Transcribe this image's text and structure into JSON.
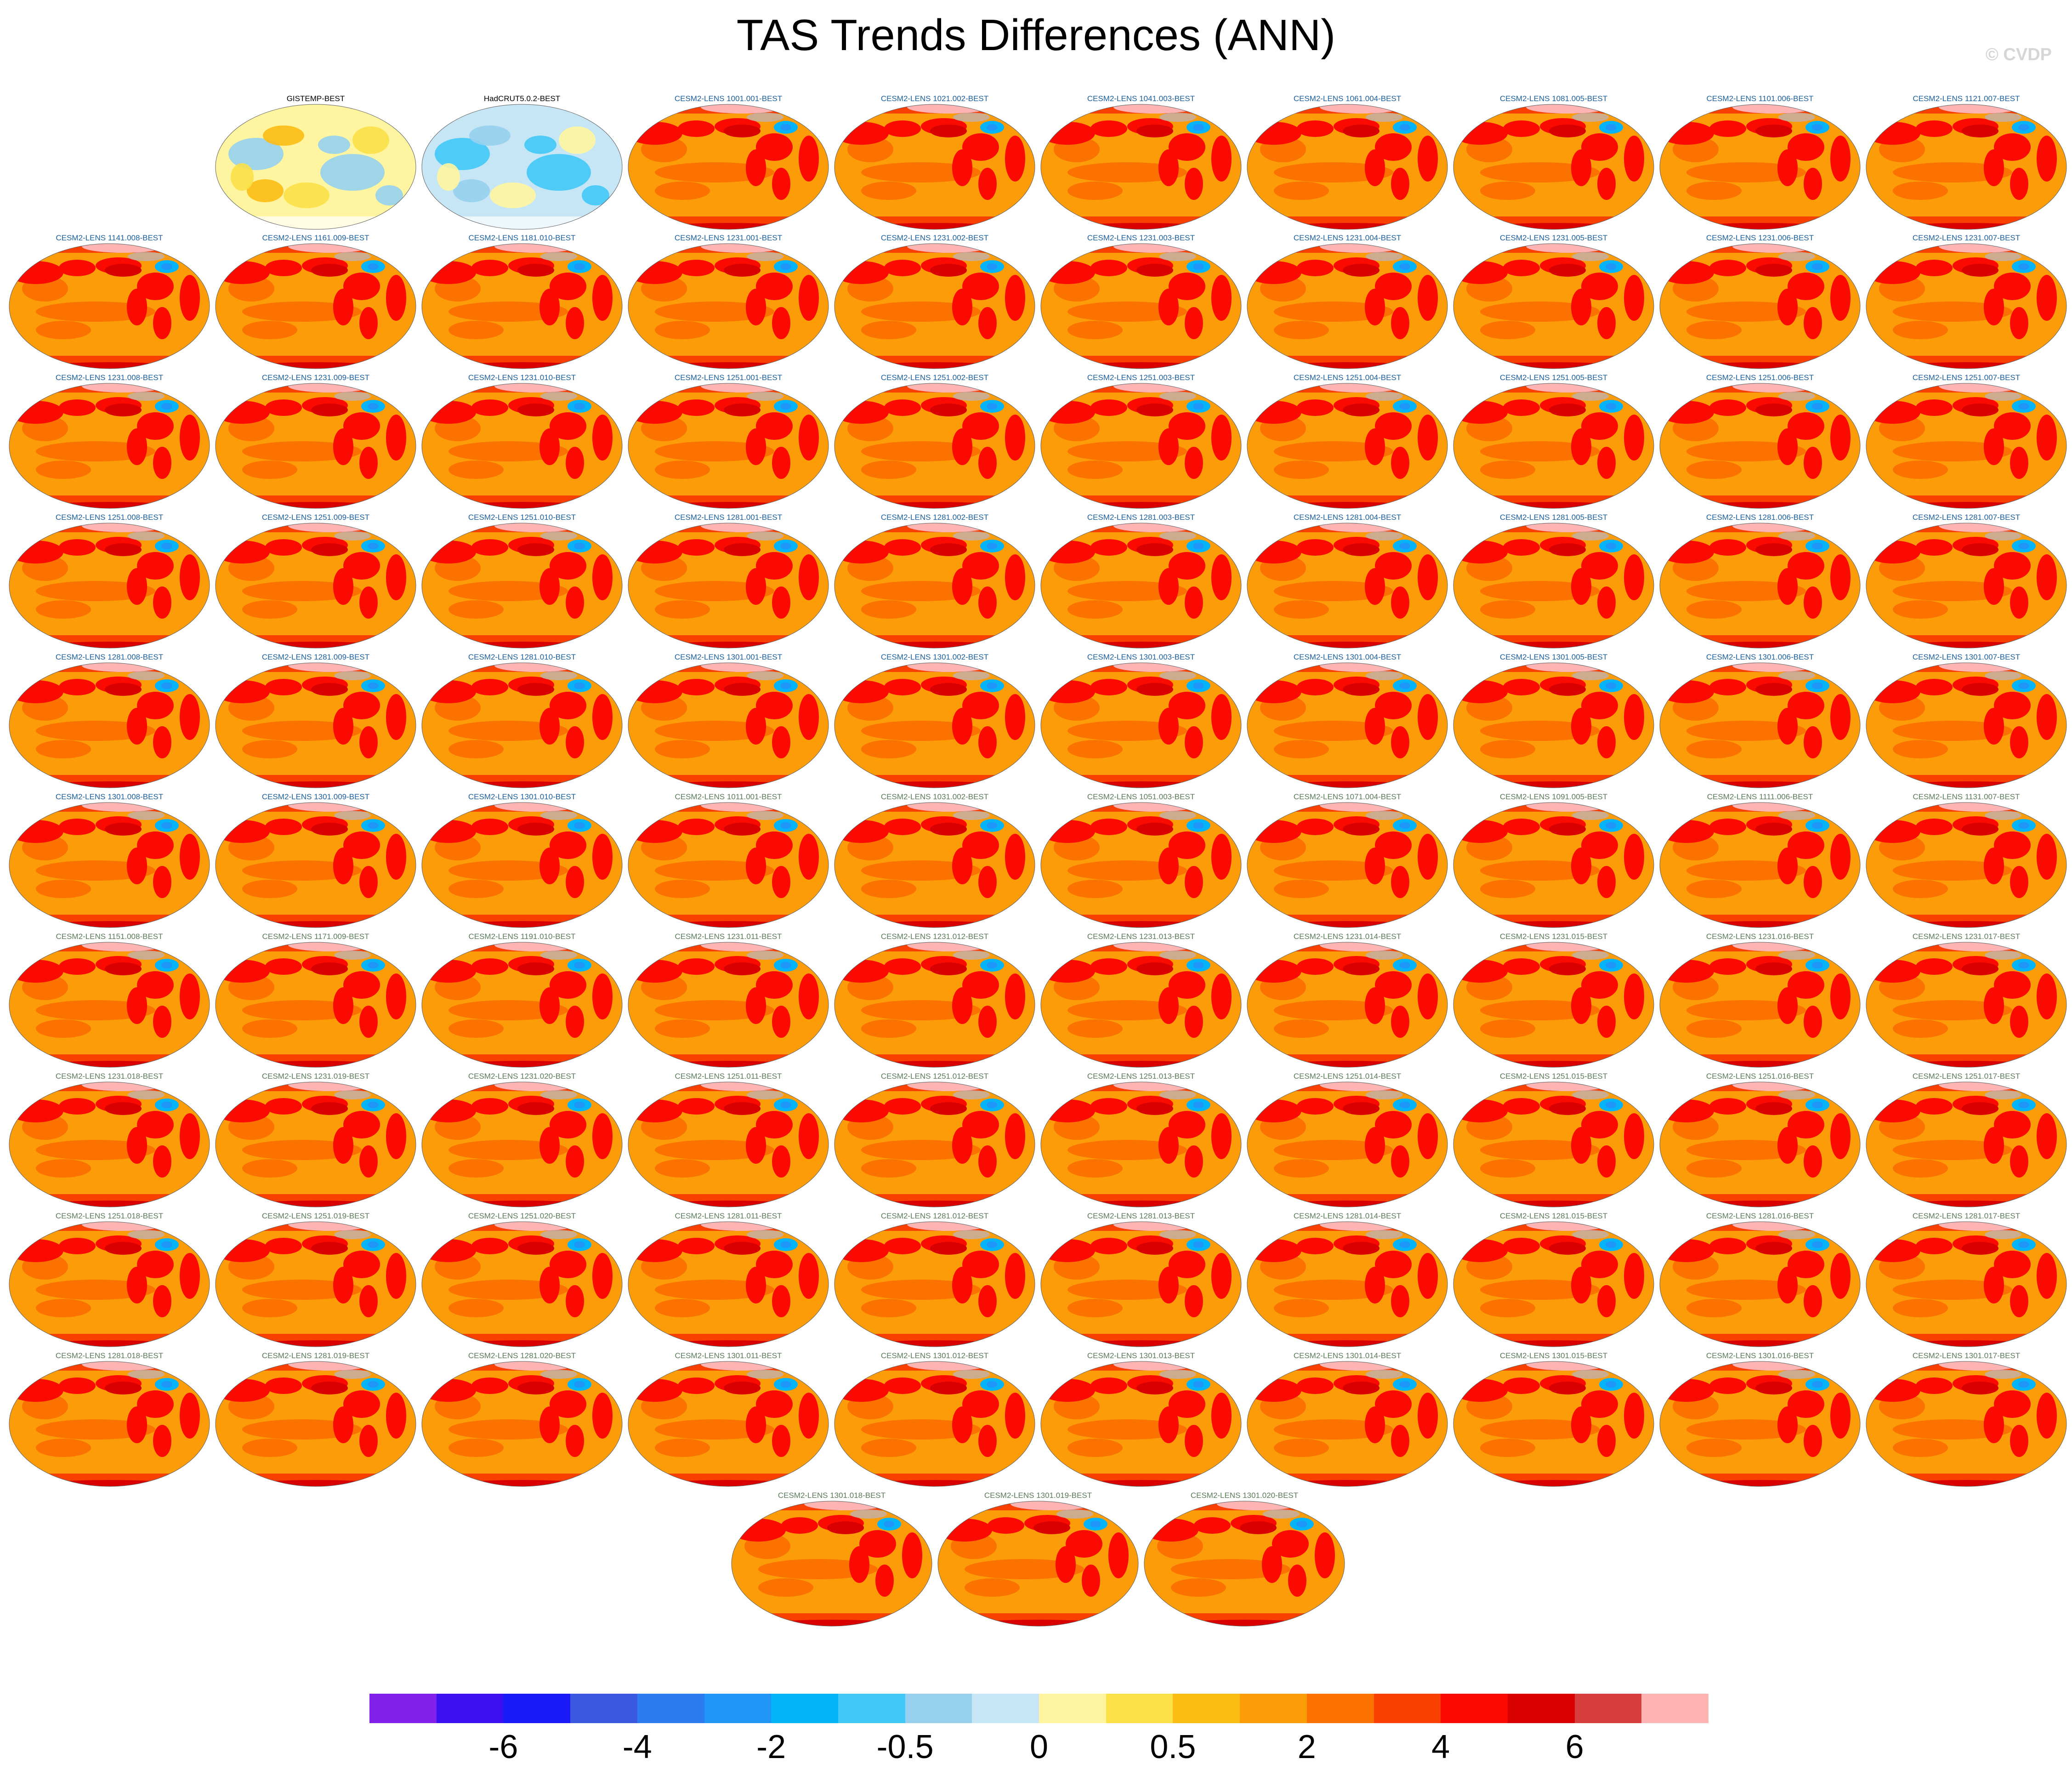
{
  "chart_data": {
    "type": "heatmap",
    "title": "TAS Trends Differences (ANN)",
    "copyright": "© CVDP",
    "colorbar": {
      "levels": [
        "-6",
        "-4",
        "-2",
        "-0.5",
        "0",
        "0.5",
        "2",
        "4",
        "6"
      ],
      "colors": [
        "#8020e8",
        "#3a10f0",
        "#1a1af8",
        "#3a58e0",
        "#2e7af0",
        "#1f96f8",
        "#05b4f8",
        "#40c8f6",
        "#96d0ee",
        "#c6e6f6",
        "#fff5a0",
        "#fbe048",
        "#fbbc14",
        "#fb9c08",
        "#fb7200",
        "#fa4000",
        "#fa0a00",
        "#d80000",
        "#d63e3e",
        "#ffb4b4"
      ]
    },
    "panels": [
      {
        "label": "GISTEMP-BEST",
        "type": "obs1"
      },
      {
        "label": "HadCRUT5.0.2-BEST",
        "type": "obs2"
      },
      {
        "label": "CESM2-LENS 1001.001-BEST",
        "type": "model"
      },
      {
        "label": "CESM2-LENS 1021.002-BEST",
        "type": "model"
      },
      {
        "label": "CESM2-LENS 1041.003-BEST",
        "type": "model"
      },
      {
        "label": "CESM2-LENS 1061.004-BEST",
        "type": "model"
      },
      {
        "label": "CESM2-LENS 1081.005-BEST",
        "type": "model"
      },
      {
        "label": "CESM2-LENS 1101.006-BEST",
        "type": "model"
      },
      {
        "label": "CESM2-LENS 1121.007-BEST",
        "type": "model"
      },
      {
        "label": "CESM2-LENS 1141.008-BEST",
        "type": "model"
      },
      {
        "label": "CESM2-LENS 1161.009-BEST",
        "type": "model"
      },
      {
        "label": "CESM2-LENS 1181.010-BEST",
        "type": "model"
      },
      {
        "label": "CESM2-LENS 1231.001-BEST",
        "type": "model"
      },
      {
        "label": "CESM2-LENS 1231.002-BEST",
        "type": "model"
      },
      {
        "label": "CESM2-LENS 1231.003-BEST",
        "type": "model"
      },
      {
        "label": "CESM2-LENS 1231.004-BEST",
        "type": "model"
      },
      {
        "label": "CESM2-LENS 1231.005-BEST",
        "type": "model"
      },
      {
        "label": "CESM2-LENS 1231.006-BEST",
        "type": "model"
      },
      {
        "label": "CESM2-LENS 1231.007-BEST",
        "type": "model"
      },
      {
        "label": "CESM2-LENS 1231.008-BEST",
        "type": "model"
      },
      {
        "label": "CESM2-LENS 1231.009-BEST",
        "type": "model"
      },
      {
        "label": "CESM2-LENS 1231.010-BEST",
        "type": "model"
      },
      {
        "label": "CESM2-LENS 1251.001-BEST",
        "type": "model"
      },
      {
        "label": "CESM2-LENS 1251.002-BEST",
        "type": "model"
      },
      {
        "label": "CESM2-LENS 1251.003-BEST",
        "type": "model"
      },
      {
        "label": "CESM2-LENS 1251.004-BEST",
        "type": "model"
      },
      {
        "label": "CESM2-LENS 1251.005-BEST",
        "type": "model"
      },
      {
        "label": "CESM2-LENS 1251.006-BEST",
        "type": "model"
      },
      {
        "label": "CESM2-LENS 1251.007-BEST",
        "type": "model"
      },
      {
        "label": "CESM2-LENS 1251.008-BEST",
        "type": "model"
      },
      {
        "label": "CESM2-LENS 1251.009-BEST",
        "type": "model"
      },
      {
        "label": "CESM2-LENS 1251.010-BEST",
        "type": "model"
      },
      {
        "label": "CESM2-LENS 1281.001-BEST",
        "type": "model"
      },
      {
        "label": "CESM2-LENS 1281.002-BEST",
        "type": "model"
      },
      {
        "label": "CESM2-LENS 1281.003-BEST",
        "type": "model"
      },
      {
        "label": "CESM2-LENS 1281.004-BEST",
        "type": "model"
      },
      {
        "label": "CESM2-LENS 1281.005-BEST",
        "type": "model"
      },
      {
        "label": "CESM2-LENS 1281.006-BEST",
        "type": "model"
      },
      {
        "label": "CESM2-LENS 1281.007-BEST",
        "type": "model"
      },
      {
        "label": "CESM2-LENS 1281.008-BEST",
        "type": "model"
      },
      {
        "label": "CESM2-LENS 1281.009-BEST",
        "type": "model"
      },
      {
        "label": "CESM2-LENS 1281.010-BEST",
        "type": "model"
      },
      {
        "label": "CESM2-LENS 1301.001-BEST",
        "type": "model"
      },
      {
        "label": "CESM2-LENS 1301.002-BEST",
        "type": "model"
      },
      {
        "label": "CESM2-LENS 1301.003-BEST",
        "type": "model"
      },
      {
        "label": "CESM2-LENS 1301.004-BEST",
        "type": "model"
      },
      {
        "label": "CESM2-LENS 1301.005-BEST",
        "type": "model"
      },
      {
        "label": "CESM2-LENS 1301.006-BEST",
        "type": "model"
      },
      {
        "label": "CESM2-LENS 1301.007-BEST",
        "type": "model"
      },
      {
        "label": "CESM2-LENS 1301.008-BEST",
        "type": "model"
      },
      {
        "label": "CESM2-LENS 1301.009-BEST",
        "type": "model"
      },
      {
        "label": "CESM2-LENS 1301.010-BEST",
        "type": "model"
      },
      {
        "label": "CESM2-LENS 1011.001-BEST",
        "type": "model2"
      },
      {
        "label": "CESM2-LENS 1031.002-BEST",
        "type": "model2"
      },
      {
        "label": "CESM2-LENS 1051.003-BEST",
        "type": "model2"
      },
      {
        "label": "CESM2-LENS 1071.004-BEST",
        "type": "model2"
      },
      {
        "label": "CESM2-LENS 1091.005-BEST",
        "type": "model2"
      },
      {
        "label": "CESM2-LENS 1111.006-BEST",
        "type": "model2"
      },
      {
        "label": "CESM2-LENS 1131.007-BEST",
        "type": "model2"
      },
      {
        "label": "CESM2-LENS 1151.008-BEST",
        "type": "model2"
      },
      {
        "label": "CESM2-LENS 1171.009-BEST",
        "type": "model2"
      },
      {
        "label": "CESM2-LENS 1191.010-BEST",
        "type": "model2"
      },
      {
        "label": "CESM2-LENS 1231.011-BEST",
        "type": "model2"
      },
      {
        "label": "CESM2-LENS 1231.012-BEST",
        "type": "model2"
      },
      {
        "label": "CESM2-LENS 1231.013-BEST",
        "type": "model2"
      },
      {
        "label": "CESM2-LENS 1231.014-BEST",
        "type": "model2"
      },
      {
        "label": "CESM2-LENS 1231.015-BEST",
        "type": "model2"
      },
      {
        "label": "CESM2-LENS 1231.016-BEST",
        "type": "model2"
      },
      {
        "label": "CESM2-LENS 1231.017-BEST",
        "type": "model2"
      },
      {
        "label": "CESM2-LENS 1231.018-BEST",
        "type": "model2"
      },
      {
        "label": "CESM2-LENS 1231.019-BEST",
        "type": "model2"
      },
      {
        "label": "CESM2-LENS 1231.020-BEST",
        "type": "model2"
      },
      {
        "label": "CESM2-LENS 1251.011-BEST",
        "type": "model2"
      },
      {
        "label": "CESM2-LENS 1251.012-BEST",
        "type": "model2"
      },
      {
        "label": "CESM2-LENS 1251.013-BEST",
        "type": "model2"
      },
      {
        "label": "CESM2-LENS 1251.014-BEST",
        "type": "model2"
      },
      {
        "label": "CESM2-LENS 1251.015-BEST",
        "type": "model2"
      },
      {
        "label": "CESM2-LENS 1251.016-BEST",
        "type": "model2"
      },
      {
        "label": "CESM2-LENS 1251.017-BEST",
        "type": "model2"
      },
      {
        "label": "CESM2-LENS 1251.018-BEST",
        "type": "model2"
      },
      {
        "label": "CESM2-LENS 1251.019-BEST",
        "type": "model2"
      },
      {
        "label": "CESM2-LENS 1251.020-BEST",
        "type": "model2"
      },
      {
        "label": "CESM2-LENS 1281.011-BEST",
        "type": "model2"
      },
      {
        "label": "CESM2-LENS 1281.012-BEST",
        "type": "model2"
      },
      {
        "label": "CESM2-LENS 1281.013-BEST",
        "type": "model2"
      },
      {
        "label": "CESM2-LENS 1281.014-BEST",
        "type": "model2"
      },
      {
        "label": "CESM2-LENS 1281.015-BEST",
        "type": "model2"
      },
      {
        "label": "CESM2-LENS 1281.016-BEST",
        "type": "model2"
      },
      {
        "label": "CESM2-LENS 1281.017-BEST",
        "type": "model2"
      },
      {
        "label": "CESM2-LENS 1281.018-BEST",
        "type": "model2"
      },
      {
        "label": "CESM2-LENS 1281.019-BEST",
        "type": "model2"
      },
      {
        "label": "CESM2-LENS 1281.020-BEST",
        "type": "model2"
      },
      {
        "label": "CESM2-LENS 1301.011-BEST",
        "type": "model2"
      },
      {
        "label": "CESM2-LENS 1301.012-BEST",
        "type": "model2"
      },
      {
        "label": "CESM2-LENS 1301.013-BEST",
        "type": "model2"
      },
      {
        "label": "CESM2-LENS 1301.014-BEST",
        "type": "model2"
      },
      {
        "label": "CESM2-LENS 1301.015-BEST",
        "type": "model2"
      },
      {
        "label": "CESM2-LENS 1301.016-BEST",
        "type": "model2"
      },
      {
        "label": "CESM2-LENS 1301.017-BEST",
        "type": "model2"
      },
      {
        "label": "CESM2-LENS 1301.018-BEST",
        "type": "model2"
      },
      {
        "label": "CESM2-LENS 1301.019-BEST",
        "type": "model2"
      },
      {
        "label": "CESM2-LENS 1301.020-BEST",
        "type": "model2"
      }
    ]
  },
  "label_colors": {
    "obs": "#000000",
    "model": "#1a5f9e",
    "model2": "#5a7a5a"
  }
}
